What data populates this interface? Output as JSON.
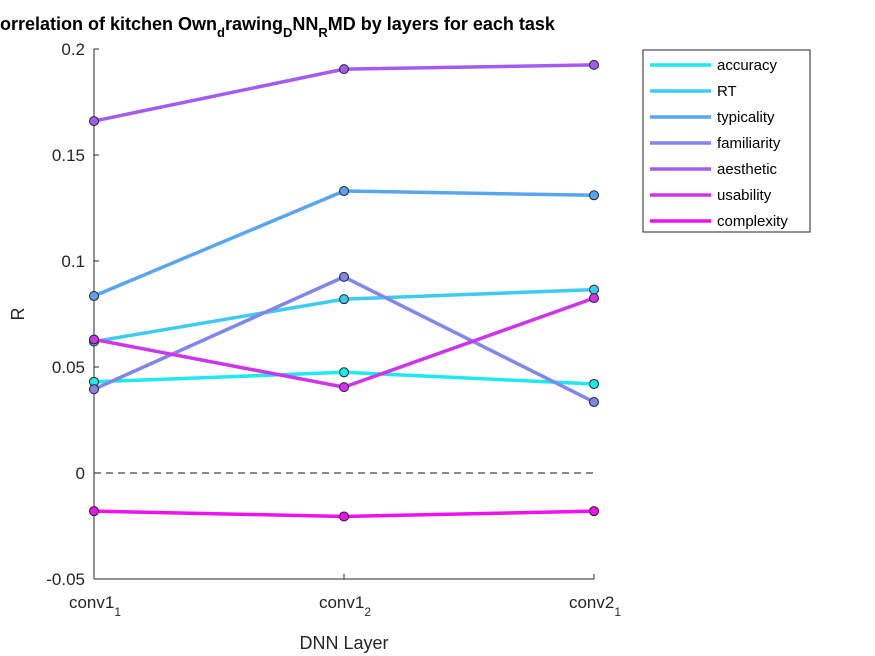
{
  "chart_data": {
    "type": "line",
    "title": {
      "parts": [
        "orrelation of kitchen Own",
        "d",
        "rawing",
        "D",
        "NN",
        "R",
        "MD by layers for each task"
      ]
    },
    "xlabel": "DNN Layer",
    "ylabel": "R",
    "ylim": [
      -0.05,
      0.2
    ],
    "yticks": [
      "-0.05",
      "0",
      "0.05",
      "0.1",
      "0.15",
      "0.2"
    ],
    "ytick_values": [
      -0.05,
      0,
      0.05,
      0.1,
      0.15,
      0.2
    ],
    "categories": [
      {
        "base": "conv1",
        "sub": "1"
      },
      {
        "base": "conv1",
        "sub": "2"
      },
      {
        "base": "conv2",
        "sub": "1"
      }
    ],
    "reference_line": {
      "y": 0,
      "style": "dashed"
    },
    "legend_position": "top-right",
    "grid": false,
    "series": [
      {
        "name": "accuracy",
        "color": "#1ee8f0",
        "values": [
          0.043,
          0.0475,
          0.042
        ]
      },
      {
        "name": "RT",
        "color": "#3dcbf2",
        "values": [
          0.062,
          0.082,
          0.0865
        ]
      },
      {
        "name": "typicality",
        "color": "#58a6ef",
        "values": [
          0.0835,
          0.133,
          0.131
        ]
      },
      {
        "name": "familiarity",
        "color": "#7f86ec",
        "values": [
          0.0395,
          0.0925,
          0.0335
        ]
      },
      {
        "name": "aesthetic",
        "color": "#a45cee",
        "values": [
          0.166,
          0.1905,
          0.1925
        ]
      },
      {
        "name": "usability",
        "color": "#cc35ec",
        "values": [
          0.063,
          0.0405,
          0.0825
        ]
      },
      {
        "name": "complexity",
        "color": "#ee12ec",
        "values": [
          -0.018,
          -0.0205,
          -0.018
        ]
      }
    ]
  }
}
